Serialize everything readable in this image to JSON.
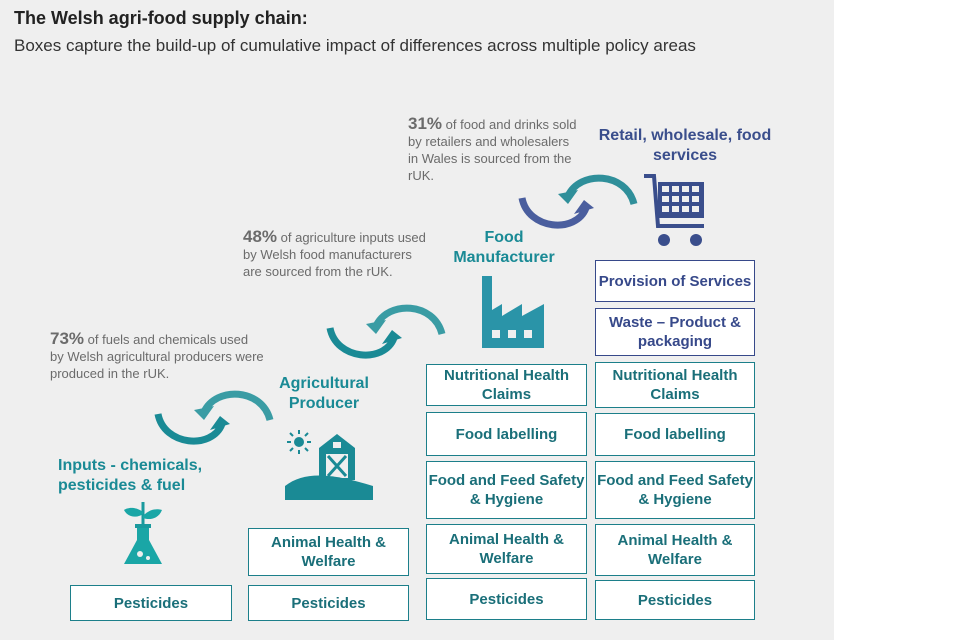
{
  "title": "The Welsh agri-food supply chain:",
  "subtitle": "Boxes capture the build-up of cumulative impact of differences across multiple policy areas",
  "notes": {
    "n73": {
      "pct": "73%",
      "text": " of fuels and chemicals used by Welsh agricultural producers were produced in the rUK."
    },
    "n48": {
      "pct": "48%",
      "text": " of agriculture inputs used by Welsh food manufacturers are sourced from the rUK."
    },
    "n31": {
      "pct": "31%",
      "text": " of food and drinks sold by retailers and wholesalers in Wales is sourced from the rUK."
    }
  },
  "stages": {
    "inputs": "Inputs - chemicals, pesticides & fuel",
    "agri": "Agricultural Producer",
    "manufacturer": "Food Manufacturer",
    "retail": "Retail, wholesale, food services"
  },
  "boxes": {
    "col1": [
      "Pesticides"
    ],
    "col2": [
      "Animal Health & Welfare",
      "Pesticides"
    ],
    "col3": [
      "Nutritional Health Claims",
      "Food labelling",
      "Food and Feed Safety & Hygiene",
      "Animal Health & Welfare",
      "Pesticides"
    ],
    "col4": [
      "Provision of Services",
      "Waste – Product & packaging",
      "Nutritional Health Claims",
      "Food labelling",
      "Food and Feed Safety & Hygiene",
      "Animal Health & Welfare",
      "Pesticides"
    ]
  },
  "icons": {
    "inputs": "flask-plant-icon",
    "agri": "barn-sun-icon",
    "manufacturer": "factory-icon",
    "retail": "shopping-cart-icon",
    "cycle": "cycle-arrows-icon"
  },
  "colors": {
    "teal": "#1a8a95",
    "navy": "#3a4e8c",
    "panel": "#efefef"
  }
}
